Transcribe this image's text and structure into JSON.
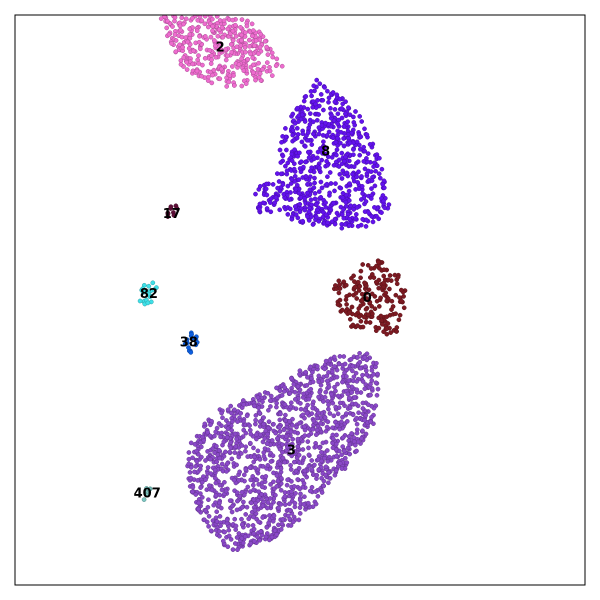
{
  "chart_data": {
    "type": "scatter",
    "title": "",
    "xlabel": "",
    "ylabel": "",
    "xlim": [
      0,
      100
    ],
    "ylim": [
      0,
      100
    ],
    "grid": false,
    "legend": "none",
    "ticks": false,
    "clusters": [
      {
        "label": "2",
        "color": "#ee6ccf",
        "center": [
          36.0,
          94.2
        ],
        "count": 380
      },
      {
        "label": "8",
        "color": "#6312ee",
        "center": [
          54.5,
          76.0
        ],
        "count": 700
      },
      {
        "label": "17",
        "color": "#5e0f38",
        "center": [
          27.5,
          65.0
        ],
        "count": 10
      },
      {
        "label": "82",
        "color": "#3ee0e8",
        "center": [
          23.5,
          51.0
        ],
        "count": 22
      },
      {
        "label": "0",
        "color": "#7d1a22",
        "center": [
          61.8,
          50.3
        ],
        "count": 190
      },
      {
        "label": "38",
        "color": "#0d5fe0",
        "center": [
          30.5,
          42.5
        ],
        "count": 15
      },
      {
        "label": "3",
        "color": "#8a48c8",
        "center": [
          48.5,
          23.5
        ],
        "count": 1400
      },
      {
        "label": "407",
        "color": "#7ec7c2",
        "center": [
          23.2,
          16.0
        ],
        "count": 8
      }
    ]
  }
}
